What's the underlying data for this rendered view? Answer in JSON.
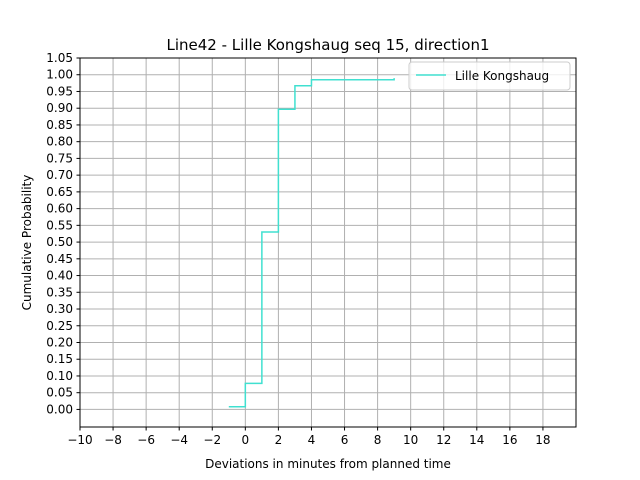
{
  "chart_data": {
    "type": "line",
    "step": "post",
    "title": "Line42 - Lille Kongshaug seq 15, direction1",
    "xlabel": "Deviations in minutes from planned time",
    "ylabel": "Cumulative Probability",
    "xlim": [
      -10,
      20
    ],
    "ylim": [
      -0.0525,
      1.05
    ],
    "xticks": [
      -10,
      -8,
      -6,
      -4,
      -2,
      0,
      2,
      4,
      6,
      8,
      10,
      12,
      14,
      16,
      18
    ],
    "xtick_labels": [
      "−10",
      "−8",
      "−6",
      "−4",
      "−2",
      "0",
      "2",
      "4",
      "6",
      "8",
      "10",
      "12",
      "14",
      "16",
      "18"
    ],
    "yticks": [
      0.0,
      0.05,
      0.1,
      0.15,
      0.2,
      0.25,
      0.3,
      0.35,
      0.4,
      0.45,
      0.5,
      0.55,
      0.6,
      0.65,
      0.7,
      0.75,
      0.8,
      0.85,
      0.9,
      0.95,
      1.0,
      1.05
    ],
    "ytick_labels": [
      "0.00",
      "0.05",
      "0.10",
      "0.15",
      "0.20",
      "0.25",
      "0.30",
      "0.35",
      "0.40",
      "0.45",
      "0.50",
      "0.55",
      "0.60",
      "0.65",
      "0.70",
      "0.75",
      "0.80",
      "0.85",
      "0.90",
      "0.95",
      "1.00",
      "1.05"
    ],
    "grid": true,
    "legend_position": "top-right",
    "series": [
      {
        "name": "Lille Kongshaug",
        "color": "#40e0d0",
        "x": [
          -1,
          0,
          1,
          2,
          3,
          4,
          9
        ],
        "y": [
          0.008,
          0.078,
          0.53,
          0.897,
          0.967,
          0.985,
          0.99
        ]
      }
    ]
  }
}
